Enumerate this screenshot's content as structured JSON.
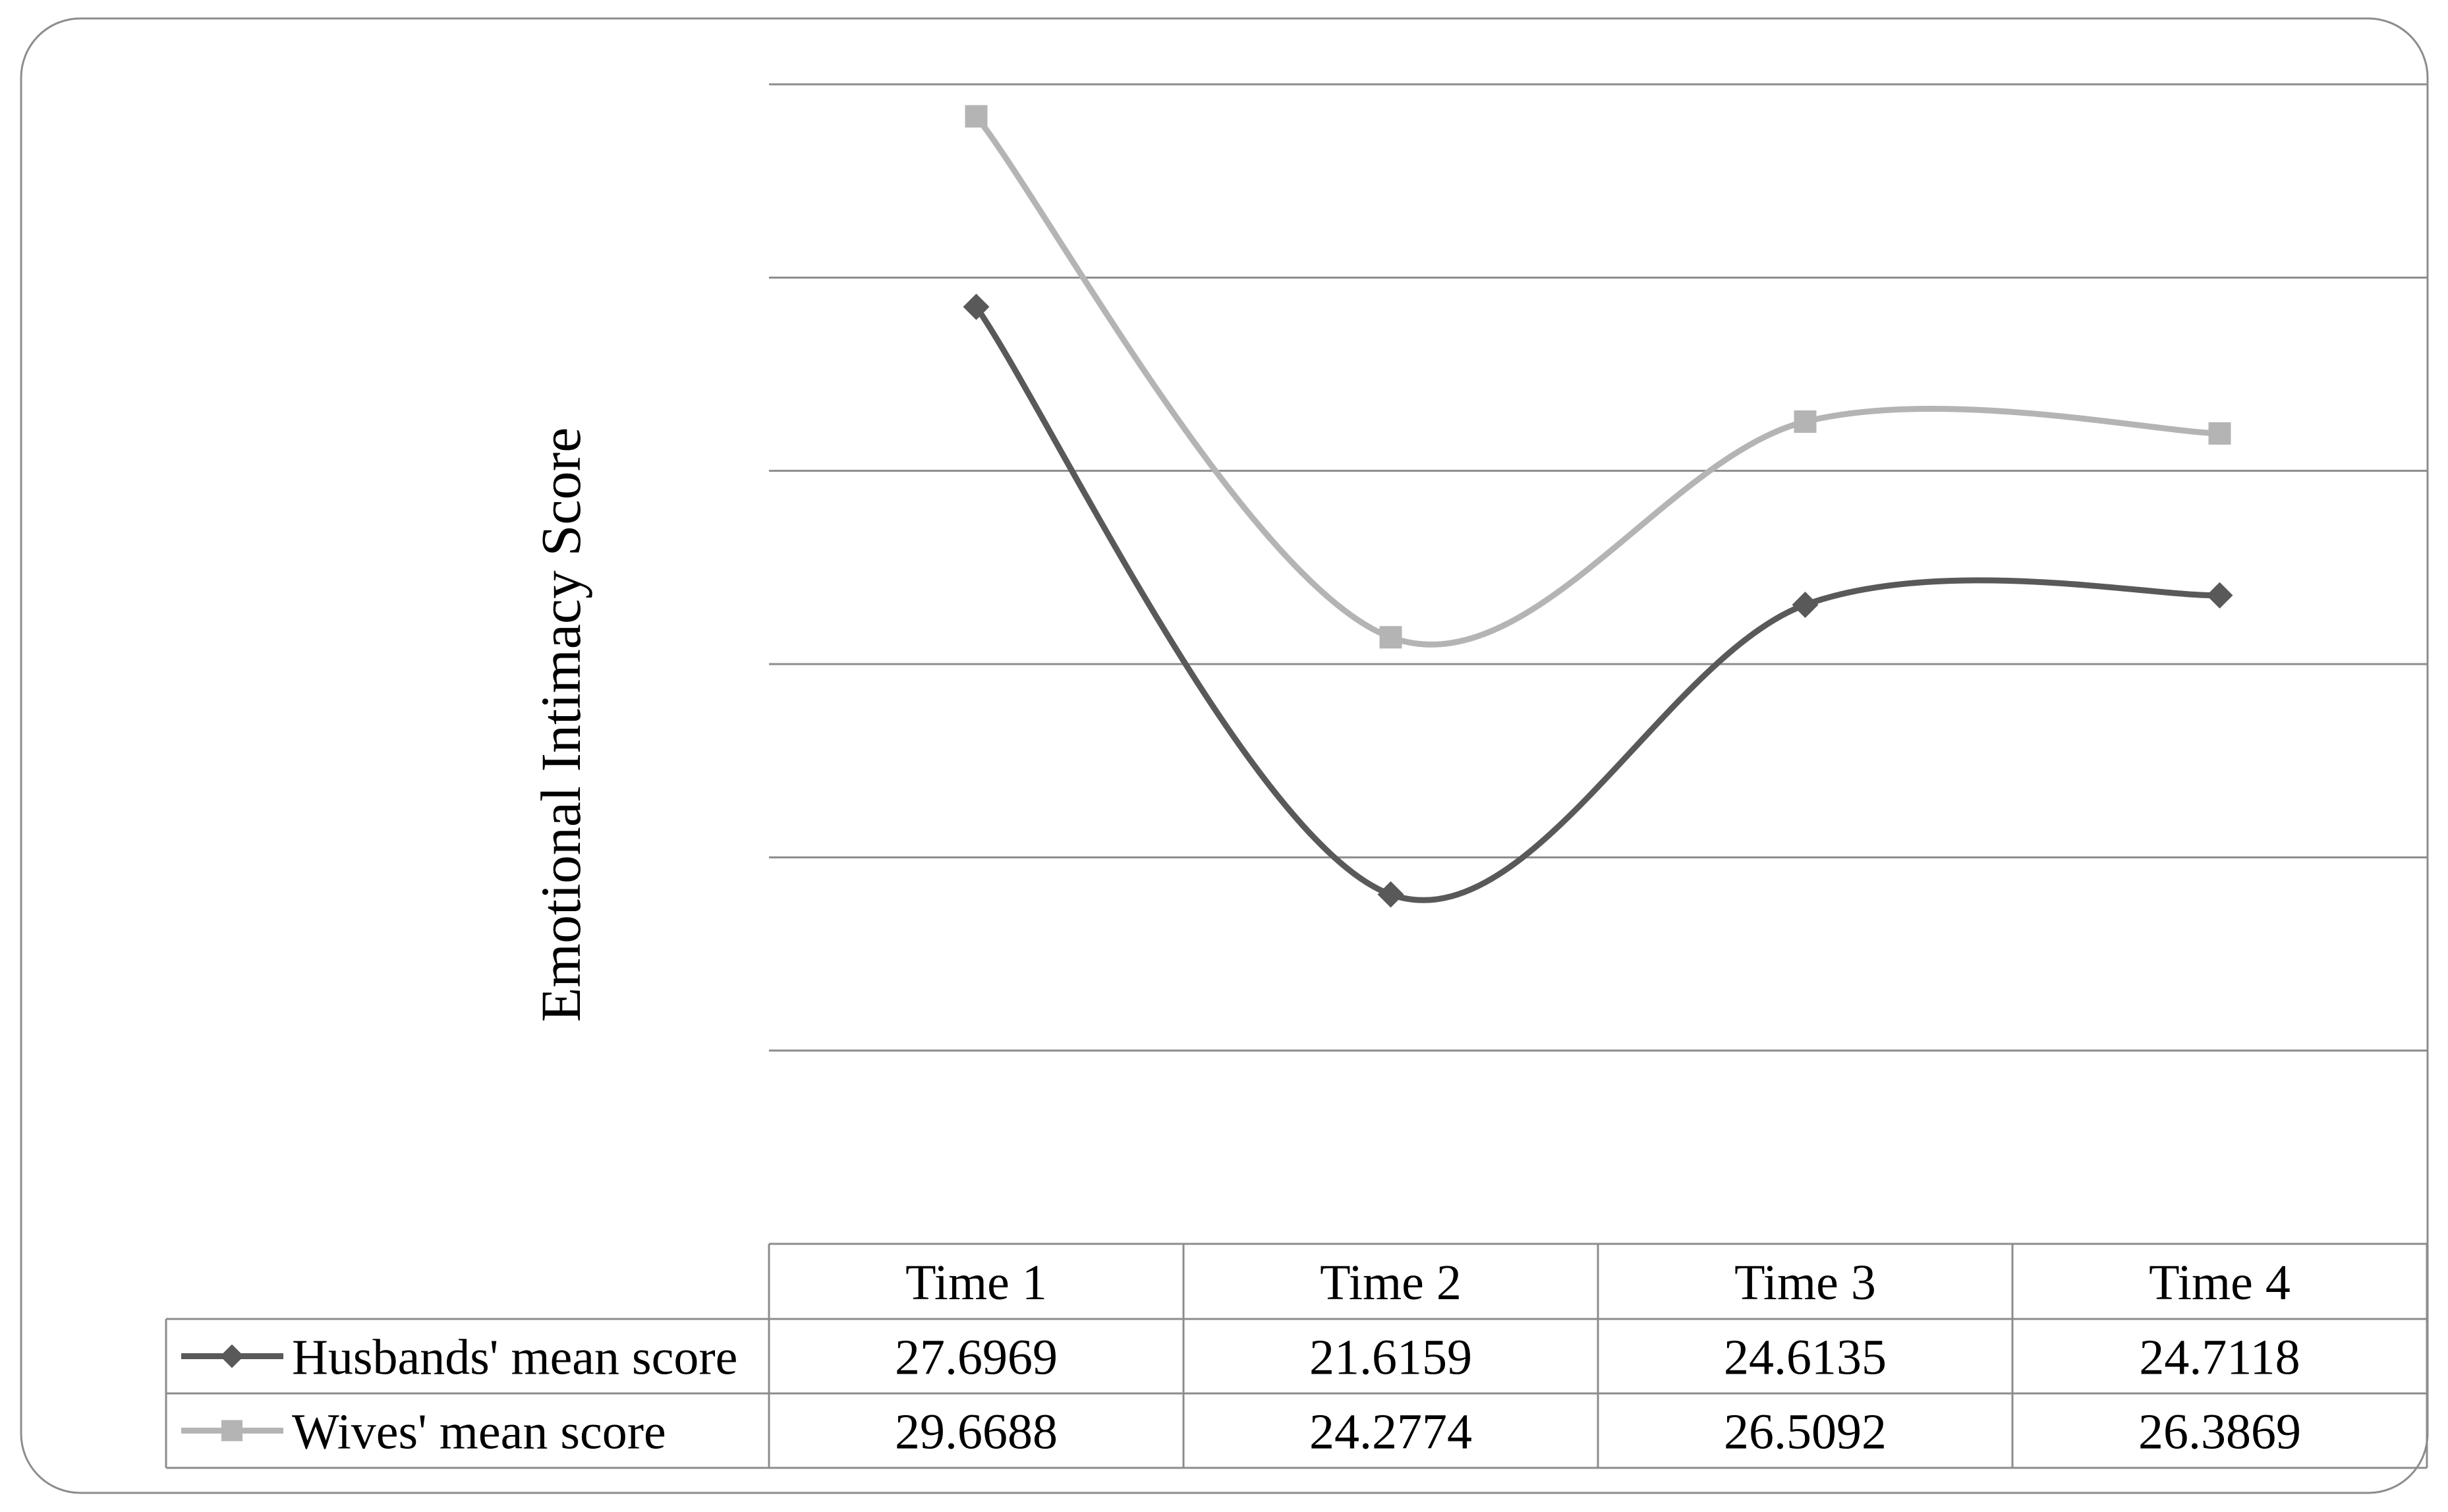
{
  "chart_data": {
    "type": "line",
    "title": "",
    "xlabel": "",
    "ylabel": "Emotional Intimacy Score",
    "categories": [
      "Time 1",
      "Time 2",
      "Time 3",
      "Time 4"
    ],
    "ylim": [
      18,
      30
    ],
    "grid": true,
    "smooth": true,
    "legend": "data-table-below",
    "series": [
      {
        "name": "Husbands' mean score",
        "values": [
          27.6969,
          21.6159,
          24.6135,
          24.7118
        ],
        "labels": [
          "27.6969",
          "21.6159",
          "24.6135",
          "24.7118"
        ],
        "color": "#595959",
        "marker": "diamond"
      },
      {
        "name": "Wives' mean score",
        "values": [
          29.6688,
          24.2774,
          26.5092,
          26.3869
        ],
        "labels": [
          "29.6688",
          "24.2774",
          "26.5092",
          "26.3869"
        ],
        "color": "#b4b4b4",
        "marker": "square"
      }
    ]
  }
}
